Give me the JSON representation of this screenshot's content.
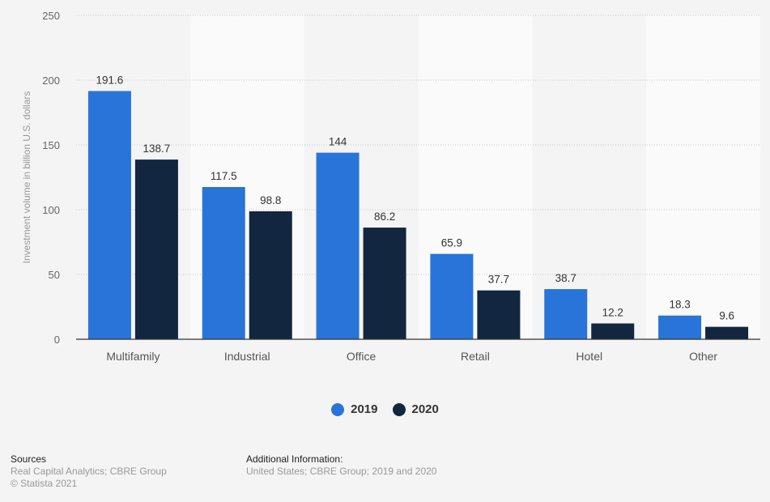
{
  "chart_data": {
    "type": "bar",
    "title": "",
    "xlabel": "",
    "ylabel": "Investment volume in billion U.S. dollars",
    "ylim": [
      0,
      250
    ],
    "yticks": [
      0,
      50,
      100,
      150,
      200,
      250
    ],
    "grid": true,
    "legend_position": "bottom-center",
    "categories": [
      "Multifamily",
      "Industrial",
      "Office",
      "Retail",
      "Hotel",
      "Other"
    ],
    "series": [
      {
        "name": "2019",
        "color": "#2874d9",
        "values": [
          191.6,
          117.5,
          144,
          65.9,
          38.7,
          18.3
        ],
        "labels": [
          "191.6",
          "117.5",
          "144",
          "65.9",
          "38.7",
          "18.3"
        ]
      },
      {
        "name": "2020",
        "color": "#12263f",
        "values": [
          138.7,
          98.8,
          86.2,
          37.7,
          12.2,
          9.6
        ],
        "labels": [
          "138.7",
          "98.8",
          "86.2",
          "37.7",
          "12.2",
          "9.6"
        ]
      }
    ]
  },
  "legend": {
    "items": [
      {
        "label": "2019",
        "color": "#2874d9"
      },
      {
        "label": "2020",
        "color": "#12263f"
      }
    ]
  },
  "footer": {
    "sources_title": "Sources",
    "sources_text": "Real Capital Analytics; CBRE Group",
    "copyright": "© Statista 2021",
    "additional_title": "Additional Information:",
    "additional_text": "United States; CBRE Group; 2019 and 2020"
  }
}
